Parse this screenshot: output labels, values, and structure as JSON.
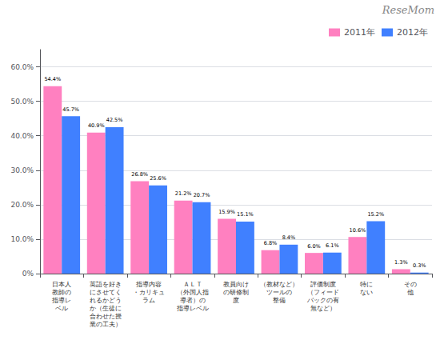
{
  "chart_data": {
    "type": "bar",
    "categories": [
      "日本人\n教師の\n指導レ\nベル",
      "英語を好き\nにさせてく\nれるかどう\nか（生徒に\n合わせた授\n業の工夫）",
      "指導内容\n・カリキュ\nラム",
      "ＡＬＴ\n（外国人指\n導者）の\n指導レベル",
      "教員向け\nの研修制\n度",
      "（教材など）\nツールの\n整備",
      "評価制度\n（フィード\nバックの有\n無など）",
      "特に\nない",
      "その\n他"
    ],
    "series": [
      {
        "name": "2011年",
        "color": "#FF80C0",
        "values": [
          54.4,
          40.9,
          26.8,
          21.2,
          15.9,
          6.8,
          6.0,
          10.6,
          1.3
        ],
        "value_labels": [
          "54.4%",
          "40.9%",
          "26.8%",
          "21.2%",
          "15.9%",
          "6.8%",
          "6.0%",
          "10.6%",
          "1.3%"
        ]
      },
      {
        "name": "2012年",
        "color": "#4080FF",
        "values": [
          45.7,
          42.5,
          25.6,
          20.7,
          15.1,
          8.4,
          6.1,
          15.2,
          0.3
        ],
        "value_labels": [
          "45.7%",
          "42.5%",
          "25.6%",
          "20.7%",
          "15.1%",
          "8.4%",
          "6.1%",
          "15.2%",
          "0.3%"
        ]
      }
    ],
    "ylim": [
      0,
      65
    ],
    "yticks": [
      {
        "value": 0,
        "label": "0%"
      },
      {
        "value": 10.0,
        "label": "10.0%"
      },
      {
        "value": 20.0,
        "label": "20.0%"
      },
      {
        "value": 30.0,
        "label": "30.0%"
      },
      {
        "value": 40.0,
        "label": "40.0%"
      },
      {
        "value": 50.0,
        "label": "50.0%"
      },
      {
        "value": 60.0,
        "label": "60.0%"
      }
    ],
    "grid": true,
    "legend": "upper right",
    "data_labels": true,
    "annotations": [
      "ReseMom"
    ]
  }
}
